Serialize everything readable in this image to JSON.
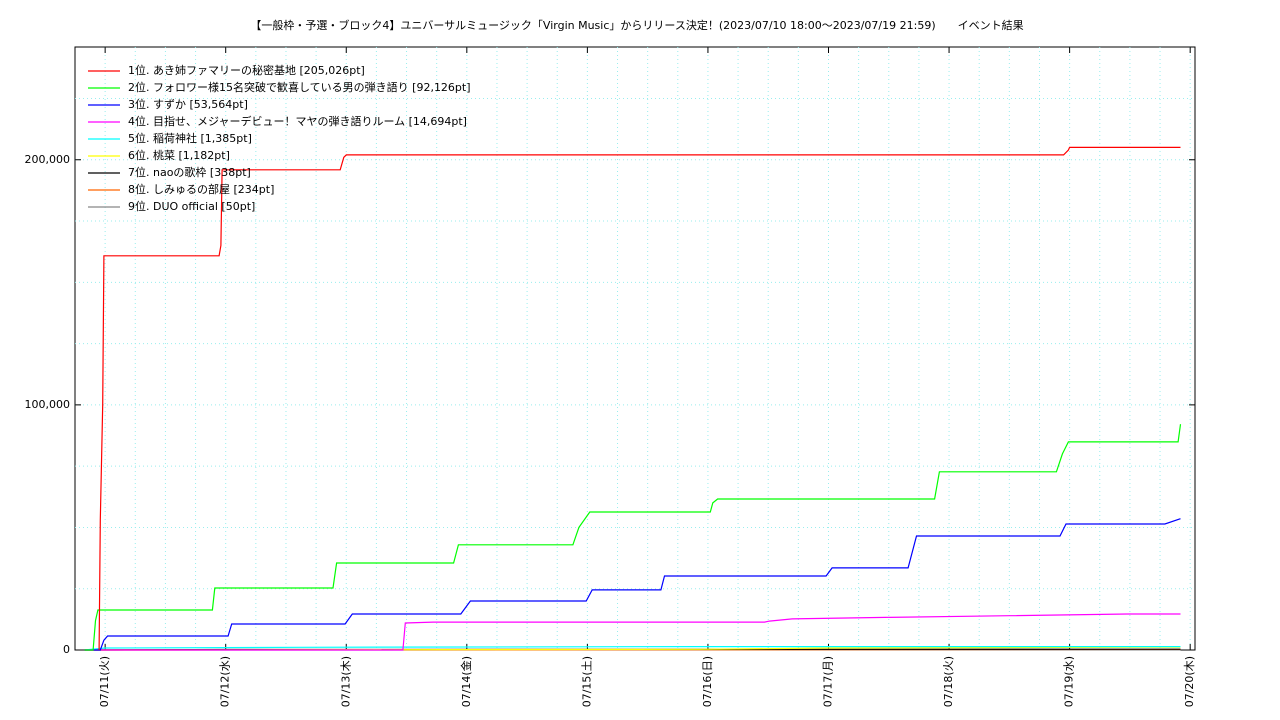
{
  "chart_data": {
    "type": "line",
    "title": "【一般枠・予選・ブロック4】ユニバーサルミュージック「Virgin Music」からリリース決定！(2023/07/10 18:00～2023/07/19 21:59)　　イベント結果",
    "xlim": [
      10.75,
      20.04
    ],
    "ylim": [
      0,
      246000
    ],
    "xticks": [
      {
        "value": 11,
        "label": "07/11(火)"
      },
      {
        "value": 12,
        "label": "07/12(水)"
      },
      {
        "value": 13,
        "label": "07/13(木)"
      },
      {
        "value": 14,
        "label": "07/14(金)"
      },
      {
        "value": 15,
        "label": "07/15(土)"
      },
      {
        "value": 16,
        "label": "07/16(日)"
      },
      {
        "value": 17,
        "label": "07/17(月)"
      },
      {
        "value": 18,
        "label": "07/18(火)"
      },
      {
        "value": 19,
        "label": "07/19(水)"
      },
      {
        "value": 20,
        "label": "07/20(木)"
      }
    ],
    "yticks": [
      0,
      {
        "value": 100000,
        "label": "100,000"
      },
      {
        "value": 200000,
        "label": "200,000"
      }
    ],
    "grid": true,
    "legend": "upper left",
    "series": [
      {
        "name": "1位. あき姉ファマリーの秘密基地 [205,026pt]",
        "color": "#ff0000",
        "x": [
          10.95,
          10.96,
          10.98,
          10.99,
          11.945,
          11.96,
          11.97,
          12.95,
          12.98,
          13.0,
          18.95,
          18.99,
          19.0,
          19.92
        ],
        "values": [
          0,
          53000,
          100000,
          160800,
          160800,
          165000,
          195900,
          195900,
          201000,
          202000,
          202000,
          204000,
          205026,
          205026
        ]
      },
      {
        "name": "2位. フォロワー様15名突破で歓喜している男の弾き語り [92,126pt]",
        "color": "#00ff00",
        "x": [
          10.83,
          10.9,
          10.92,
          10.94,
          11.89,
          11.91,
          12.89,
          12.92,
          13.89,
          13.93,
          14.88,
          14.93,
          15.02,
          16.02,
          16.04,
          16.08,
          17.88,
          17.92,
          18.89,
          18.94,
          18.99,
          19.9,
          19.92
        ],
        "values": [
          0,
          0,
          12000,
          16300,
          16300,
          25300,
          25300,
          35500,
          35500,
          42900,
          42900,
          50000,
          56300,
          56300,
          60000,
          61600,
          61600,
          72700,
          72700,
          80000,
          84900,
          84900,
          92126
        ]
      },
      {
        "name": "3位. すずか [53,564pt]",
        "color": "#0000ff",
        "x": [
          10.83,
          10.96,
          10.99,
          11.02,
          12.02,
          12.05,
          12.99,
          13.05,
          13.95,
          14.03,
          14.99,
          15.04,
          15.61,
          15.64,
          16.98,
          17.03,
          17.66,
          17.73,
          18.92,
          18.97,
          19.79,
          19.92
        ],
        "values": [
          0,
          0,
          4000,
          5700,
          5700,
          10600,
          10600,
          14700,
          14700,
          20000,
          20000,
          24500,
          24500,
          30200,
          30200,
          33500,
          33500,
          46500,
          46500,
          51400,
          51400,
          53564
        ]
      },
      {
        "name": "4位. 目指せ、メジャーデビュー！マヤの弾き語りルーム [14,694pt]",
        "color": "#ff00ff",
        "x": [
          10.83,
          13.47,
          13.49,
          13.72,
          16.47,
          16.51,
          16.7,
          17.47,
          18.5,
          19.48,
          19.92
        ],
        "values": [
          0,
          0,
          11000,
          11400,
          11400,
          11800,
          12700,
          13300,
          14000,
          14694,
          14694
        ]
      },
      {
        "name": "5位. 稲荷神社 [1,385pt]",
        "color": "#00ffff",
        "x": [
          10.83,
          11.0,
          12.62,
          15.9,
          19.92
        ],
        "values": [
          0,
          800,
          1100,
          1385,
          1385
        ]
      },
      {
        "name": "6位. 桃菜 [1,182pt]",
        "color": "#ffff00",
        "x": [
          10.83,
          15.93,
          17.0,
          19.92
        ],
        "values": [
          0,
          300,
          800,
          1182
        ]
      },
      {
        "name": "7位. naoの歌枠 [338pt]",
        "color": "#000000",
        "x": [
          10.83,
          12.0,
          19.92
        ],
        "values": [
          0,
          200,
          338
        ]
      },
      {
        "name": "8位. しみゅるの部屋 [234pt]",
        "color": "#ff6600",
        "x": [
          10.83,
          15.9,
          19.92
        ],
        "values": [
          0,
          100,
          234
        ]
      },
      {
        "name": "9位. DUO official [50pt]",
        "color": "#888888",
        "x": [
          10.83,
          19.92
        ],
        "values": [
          0,
          50
        ]
      }
    ]
  }
}
